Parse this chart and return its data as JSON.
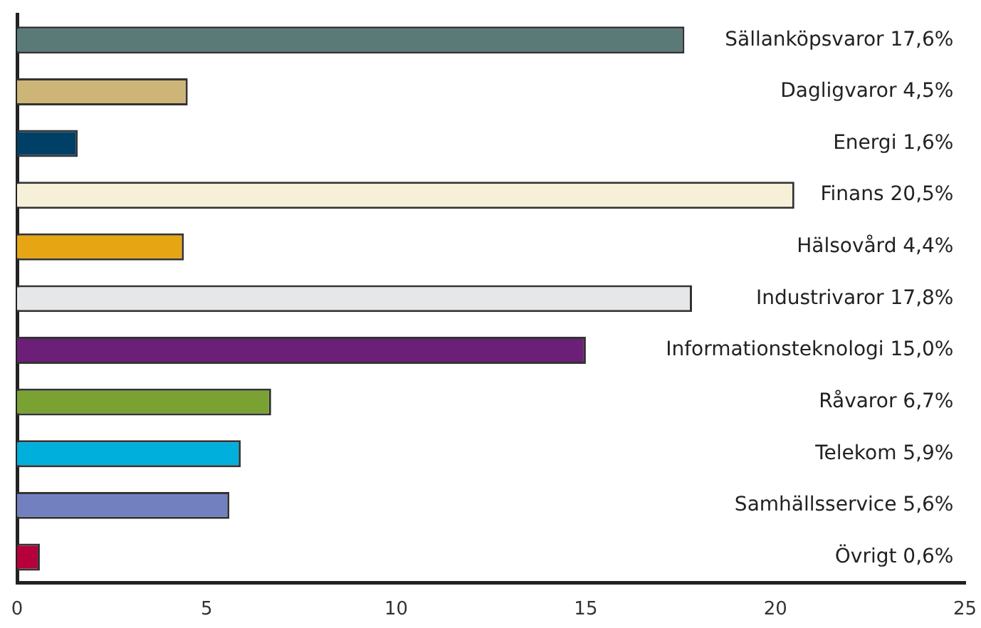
{
  "chart_data": {
    "type": "bar",
    "orientation": "horizontal",
    "categories": [
      "Sällanköpsvaror",
      "Dagligvaror",
      "Energi",
      "Finans",
      "Hälsovård",
      "Industrivaror",
      "Informationsteknologi",
      "Råvaror",
      "Telekom",
      "Samhällsservice",
      "Övrigt"
    ],
    "values": [
      17.6,
      4.5,
      1.6,
      20.5,
      4.4,
      17.8,
      15.0,
      6.7,
      5.9,
      5.6,
      0.6
    ],
    "value_labels": [
      "17,6%",
      "4,5%",
      "1,6%",
      "20,5%",
      "4,4%",
      "17,8%",
      "15,0%",
      "6,7%",
      "5,9%",
      "5,6%",
      "0,6%"
    ],
    "colors": [
      "#5a7a78",
      "#cdb578",
      "#003f66",
      "#f6f0d8",
      "#e6a614",
      "#e6e7e8",
      "#6b1f78",
      "#7aa232",
      "#00afdb",
      "#7280c0",
      "#b5003c"
    ],
    "xlim": [
      0,
      25
    ],
    "xticks": [
      0,
      5,
      10,
      15,
      20,
      25
    ],
    "grid": false,
    "legend": false
  }
}
